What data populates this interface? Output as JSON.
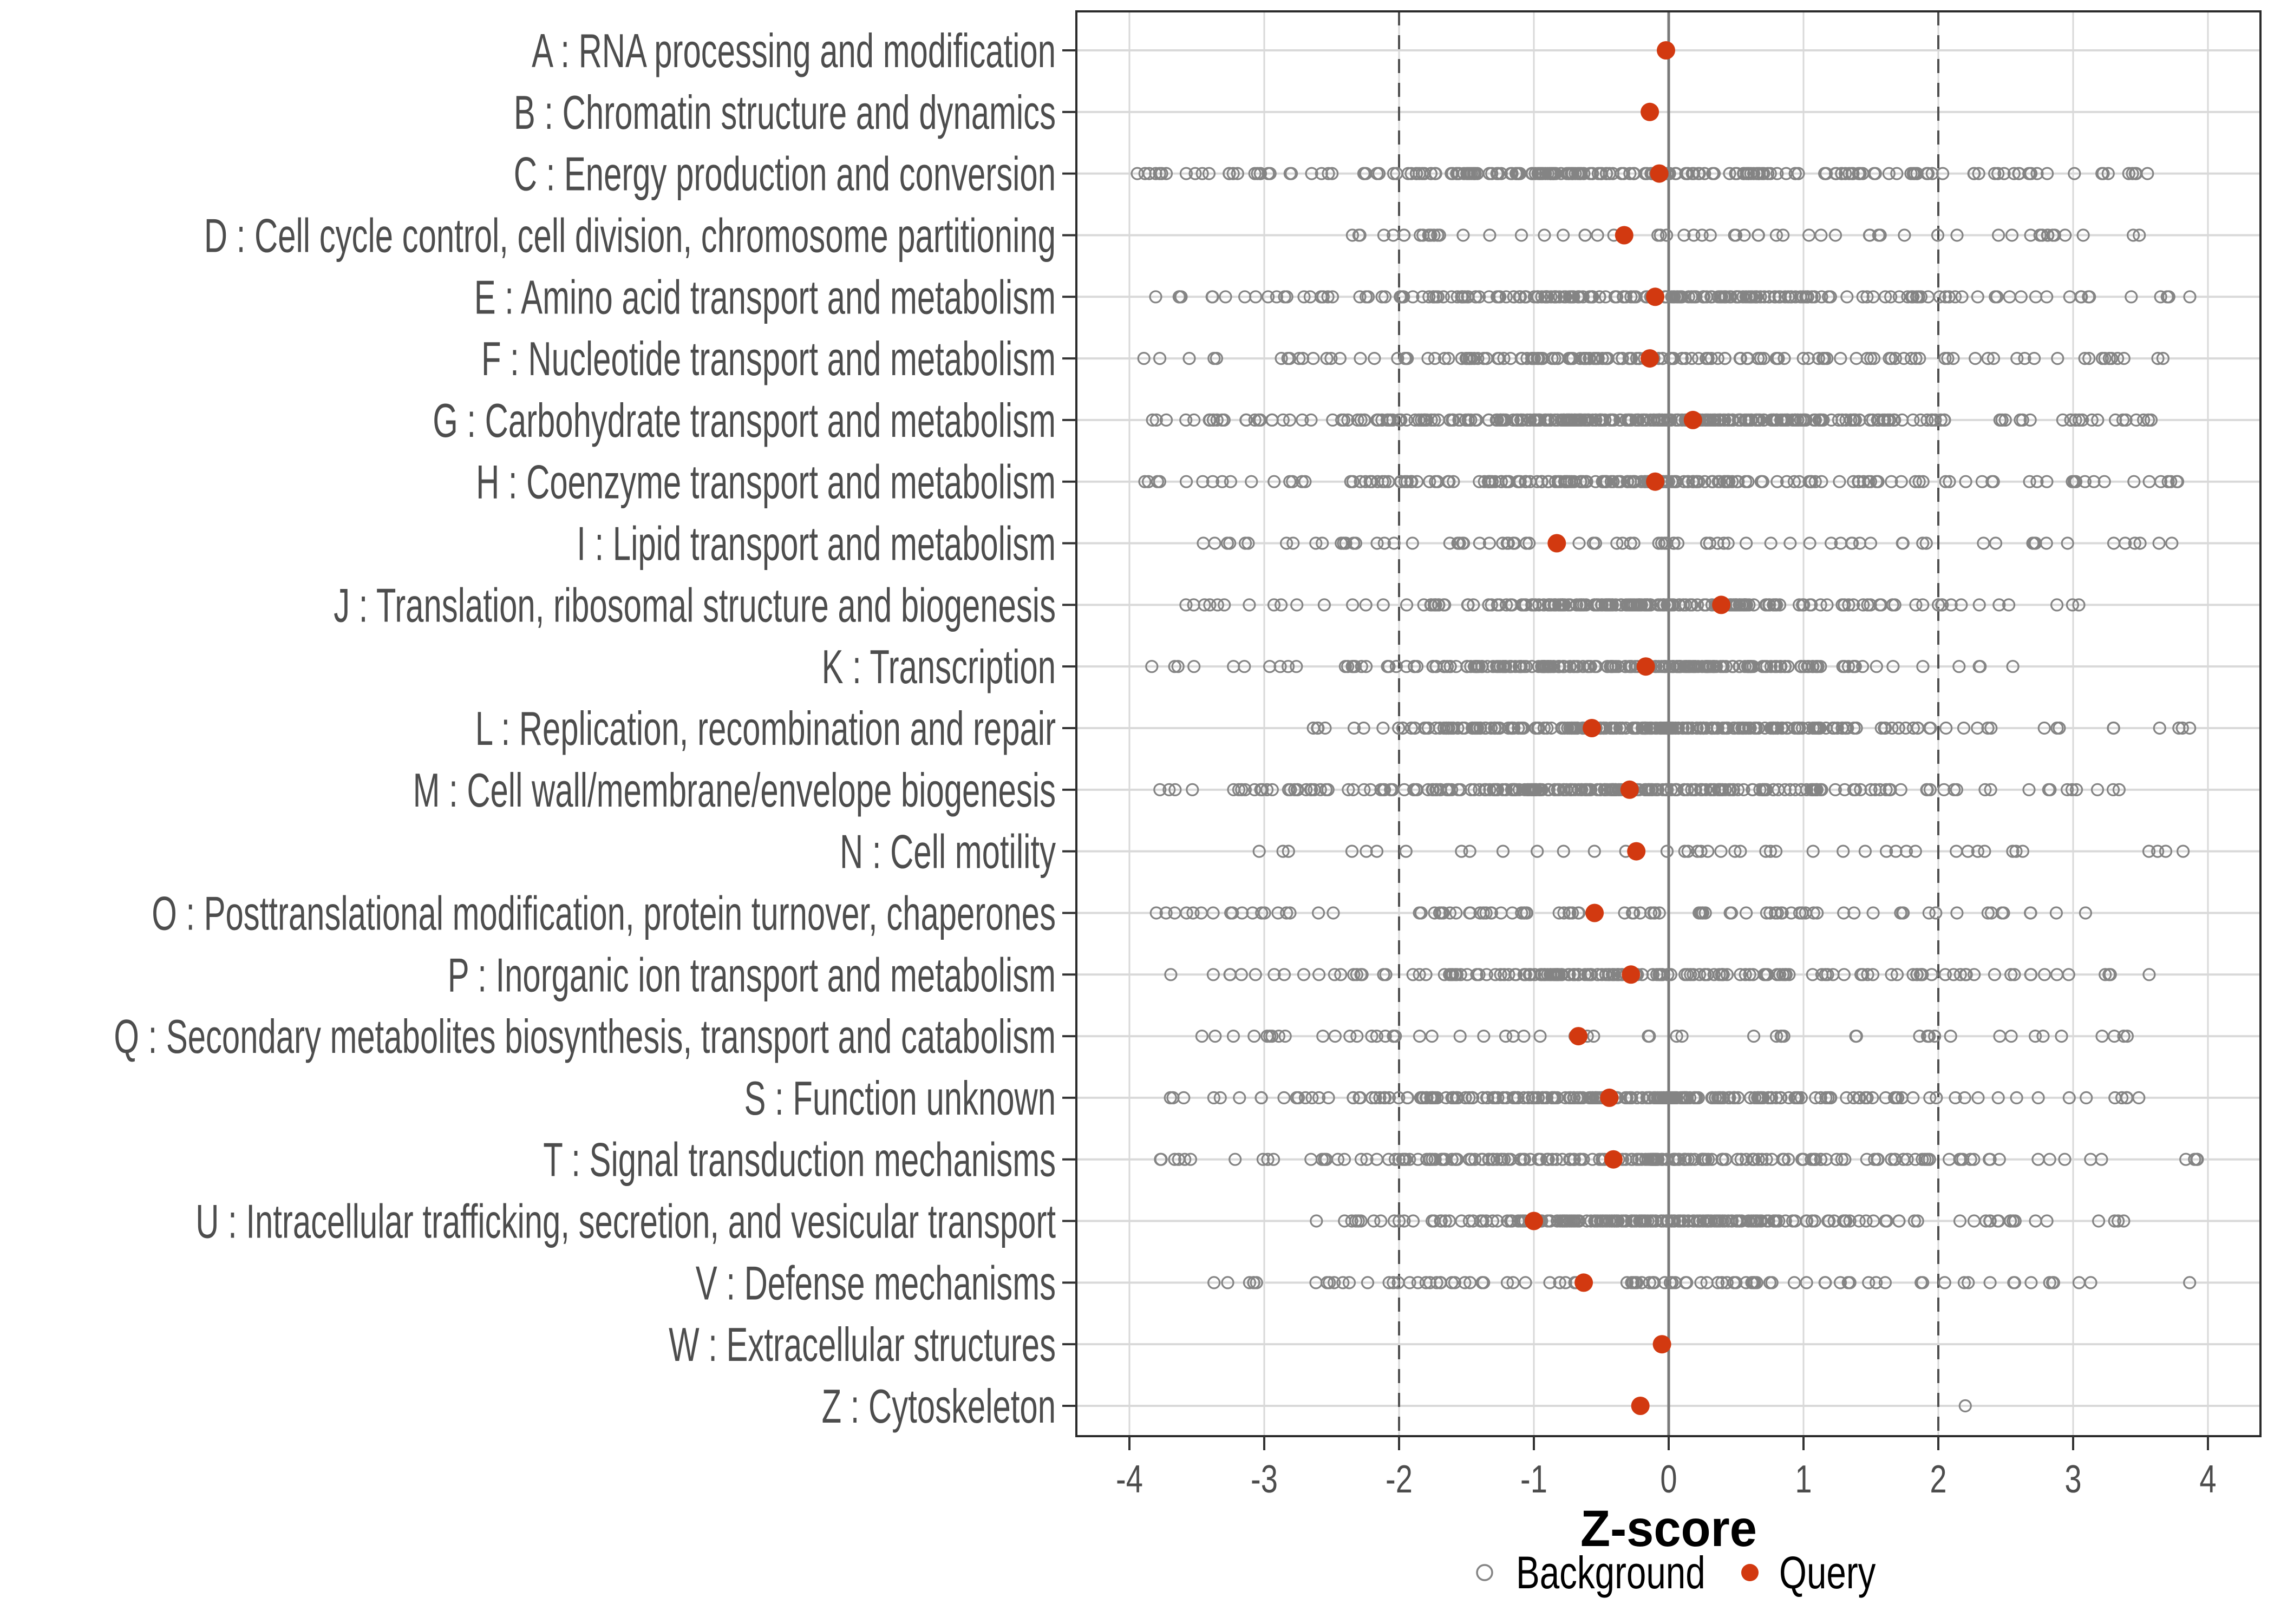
{
  "chart_data": {
    "type": "scatter",
    "variant": "horizontal-strip-plot",
    "title": "",
    "xlabel": "Z-score",
    "ylabel": "",
    "xlim": [
      -4.4,
      4.4
    ],
    "x_ticks": [
      -4,
      -3,
      -2,
      -1,
      0,
      1,
      2,
      3,
      4
    ],
    "grid": true,
    "reference_lines": {
      "solid": [
        0
      ],
      "dashed": [
        -2,
        2
      ]
    },
    "legend": {
      "position": "bottom",
      "items": [
        {
          "label": "Background",
          "marker": "open-circle"
        },
        {
          "label": "Query",
          "marker": "filled-circle"
        }
      ]
    },
    "colors": {
      "background_marker": "#848484",
      "query_marker": "#d23910",
      "grid_line": "#d9d9d9",
      "zero_line": "#7a7a7a",
      "dashed_line": "#4f4f4f",
      "panel_border": "#2b2b2b",
      "axis_text": "#4d4d4d",
      "tick_mark": "#333333",
      "legend_text": "#000000",
      "title_text": "#000000"
    },
    "categories": [
      {
        "code": "A",
        "label": "A : RNA processing and modification",
        "query": -0.02,
        "background": {
          "n": 0
        }
      },
      {
        "code": "B",
        "label": "B : Chromatin structure and dynamics",
        "query": -0.14,
        "background": {
          "n": 0
        }
      },
      {
        "code": "C",
        "label": "C : Energy production and conversion",
        "query": -0.07,
        "background": {
          "n": 230,
          "min": -3.95,
          "max": 3.65,
          "center": -0.35,
          "sd": 1.15,
          "uniform": 0.3,
          "seed": 1097
        }
      },
      {
        "code": "D",
        "label": "D : Cell cycle control, cell division, chromosome partitioning",
        "query": -0.33,
        "background": {
          "n": 62,
          "min": -2.45,
          "max": 3.5,
          "center": -0.2,
          "sd": 1.4,
          "uniform": 0.75,
          "seed": 1194
        }
      },
      {
        "code": "E",
        "label": "E : Amino acid transport and metabolism",
        "query": -0.1,
        "background": {
          "n": 215,
          "min": -3.95,
          "max": 3.9,
          "center": -0.25,
          "sd": 1.1,
          "uniform": 0.3,
          "seed": 1291
        }
      },
      {
        "code": "F",
        "label": "F : Nucleotide transport and metabolism",
        "query": -0.14,
        "background": {
          "n": 150,
          "min": -3.9,
          "max": 3.85,
          "center": -0.3,
          "sd": 1.15,
          "uniform": 0.35,
          "seed": 1388
        }
      },
      {
        "code": "G",
        "label": "G : Carbohydrate transport and metabolism",
        "query": 0.18,
        "background": {
          "n": 320,
          "min": -3.85,
          "max": 3.6,
          "center": -0.15,
          "sd": 1.1,
          "uniform": 0.3,
          "seed": 1485
        }
      },
      {
        "code": "H",
        "label": "H : Coenzyme transport and metabolism",
        "query": -0.1,
        "background": {
          "n": 200,
          "min": -3.9,
          "max": 3.95,
          "center": -0.25,
          "sd": 1.15,
          "uniform": 0.35,
          "seed": 1582
        }
      },
      {
        "code": "I",
        "label": "I : Lipid transport and metabolism",
        "query": -0.83,
        "background": {
          "n": 80,
          "min": -3.95,
          "max": 3.8,
          "center": -0.3,
          "sd": 1.5,
          "uniform": 0.65,
          "seed": 1679
        }
      },
      {
        "code": "J",
        "label": "J : Translation, ribosomal structure and biogenesis",
        "query": 0.39,
        "background": {
          "n": 190,
          "min": -3.6,
          "max": 3.05,
          "center": -0.1,
          "sd": 1.0,
          "uniform": 0.3,
          "seed": 1776
        }
      },
      {
        "code": "K",
        "label": "K : Transcription",
        "query": -0.17,
        "background": {
          "n": 215,
          "min": -3.85,
          "max": 3.05,
          "center": -0.25,
          "sd": 1.05,
          "uniform": 0.3,
          "seed": 1873
        }
      },
      {
        "code": "L",
        "label": "L : Replication, recombination and repair",
        "query": -0.57,
        "background": {
          "n": 260,
          "min": -2.65,
          "max": 3.95,
          "center": -0.1,
          "sd": 1.05,
          "uniform": 0.3,
          "seed": 1970
        }
      },
      {
        "code": "M",
        "label": "M : Cell wall/membrane/envelope biogenesis",
        "query": -0.29,
        "background": {
          "n": 260,
          "min": -3.95,
          "max": 3.55,
          "center": -0.3,
          "sd": 1.15,
          "uniform": 0.3,
          "seed": 2067
        }
      },
      {
        "code": "N",
        "label": "N : Cell motility",
        "query": -0.24,
        "background": {
          "n": 44,
          "min": -3.5,
          "max": 3.9,
          "center": 0.0,
          "sd": 1.8,
          "uniform": 0.85,
          "seed": 2164
        }
      },
      {
        "code": "O",
        "label": "O : Posttranslational modification, protein turnover, chaperones",
        "query": -0.55,
        "background": {
          "n": 95,
          "min": -4.0,
          "max": 3.55,
          "center": -0.3,
          "sd": 1.4,
          "uniform": 0.6,
          "seed": 2261
        }
      },
      {
        "code": "P",
        "label": "P : Inorganic ion transport and metabolism",
        "query": -0.28,
        "background": {
          "n": 170,
          "min": -3.7,
          "max": 3.65,
          "center": -0.3,
          "sd": 1.2,
          "uniform": 0.35,
          "seed": 2358
        }
      },
      {
        "code": "Q",
        "label": "Q : Secondary metabolites biosynthesis, transport and catabolism",
        "query": -0.67,
        "background": {
          "n": 56,
          "min": -3.55,
          "max": 3.45,
          "center": -0.3,
          "sd": 1.6,
          "uniform": 0.8,
          "seed": 2455
        }
      },
      {
        "code": "S",
        "label": "S : Function unknown",
        "query": -0.44,
        "background": {
          "n": 235,
          "min": -3.75,
          "max": 3.5,
          "center": -0.2,
          "sd": 1.15,
          "uniform": 0.3,
          "seed": 2552
        }
      },
      {
        "code": "T",
        "label": "T : Signal transduction mechanisms",
        "query": -0.41,
        "background": {
          "n": 190,
          "min": -3.8,
          "max": 3.95,
          "center": -0.3,
          "sd": 1.2,
          "uniform": 0.35,
          "seed": 2649
        }
      },
      {
        "code": "U",
        "label": "U : Intracellular trafficking, secretion, and vesicular transport",
        "query": -1.0,
        "background": {
          "n": 215,
          "min": -2.65,
          "max": 3.45,
          "center": -0.35,
          "sd": 1.0,
          "uniform": 0.3,
          "seed": 2746
        }
      },
      {
        "code": "V",
        "label": "V : Defense mechanisms",
        "query": -0.63,
        "background": {
          "n": 95,
          "min": -3.5,
          "max": 3.95,
          "center": -0.4,
          "sd": 1.3,
          "uniform": 0.55,
          "seed": 2843
        }
      },
      {
        "code": "W",
        "label": "W : Extracellular structures",
        "query": -0.05,
        "background": {
          "n": 0
        }
      },
      {
        "code": "Z",
        "label": "Z : Cytoskeleton",
        "query": -0.21,
        "background": {
          "n": 1,
          "points": [
            2.2
          ]
        }
      }
    ]
  }
}
